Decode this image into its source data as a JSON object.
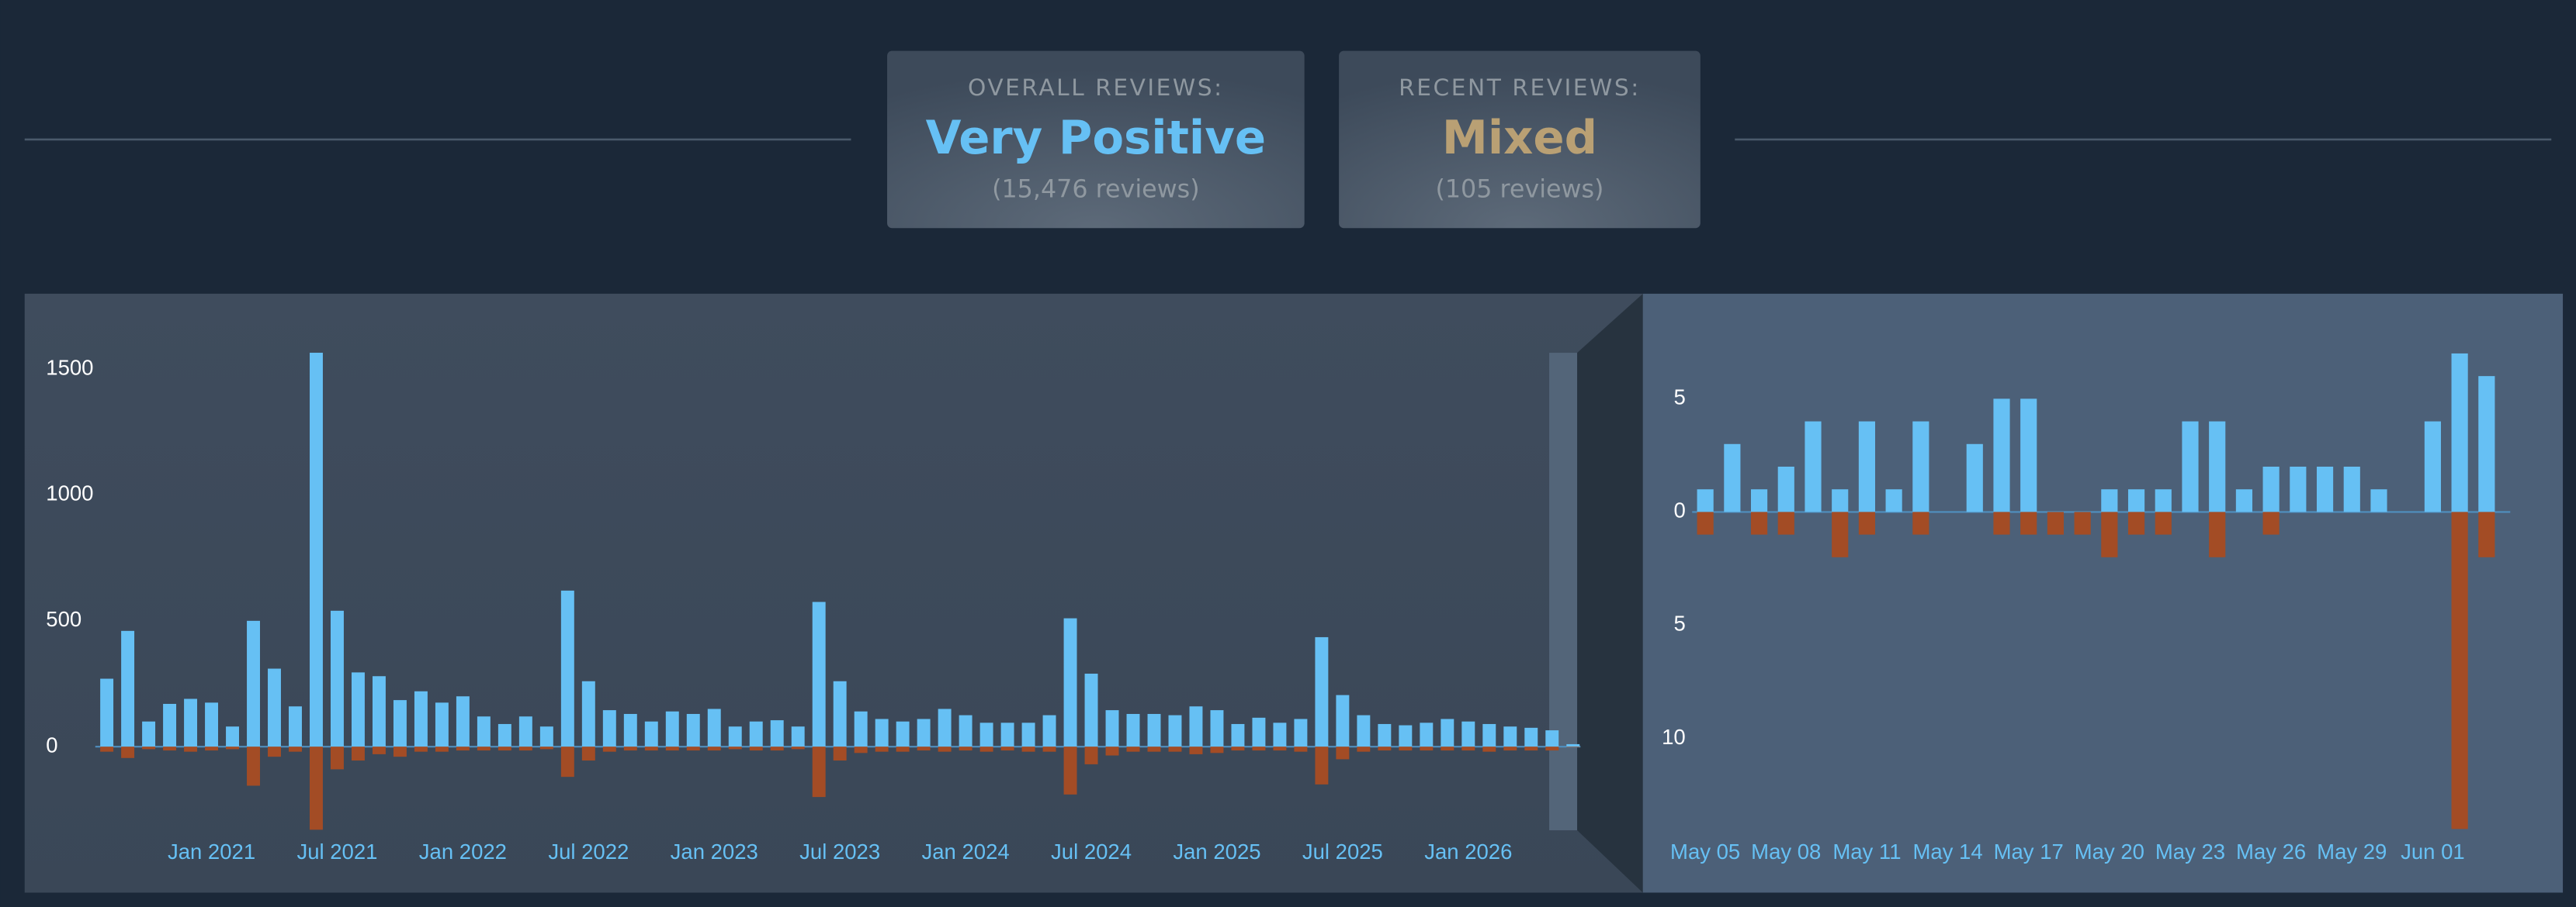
{
  "summary": {
    "overall": {
      "label": "OVERALL REVIEWS:",
      "rating": "Very Positive",
      "count": "(15,476 reviews)"
    },
    "recent": {
      "label": "RECENT REVIEWS:",
      "rating": "Mixed",
      "count": "(105 reviews)"
    }
  },
  "chart_data": [
    {
      "type": "bar",
      "categories": [
        null,
        null,
        null,
        null,
        null,
        "Jan 2021",
        null,
        null,
        null,
        null,
        null,
        "Jul 2021",
        null,
        null,
        null,
        null,
        null,
        "Jan 2022",
        null,
        null,
        null,
        null,
        null,
        "Jul 2022",
        null,
        null,
        null,
        null,
        null,
        "Jan 2023",
        null,
        null,
        null,
        null,
        null,
        "Jul 2023",
        null,
        null,
        null,
        null,
        null,
        "Jan 2024",
        null,
        null,
        null,
        null,
        null,
        "Jul 2024",
        null,
        null,
        null,
        null,
        null,
        "Jan 2025",
        null,
        null,
        null,
        null,
        null,
        "Jul 2025",
        null,
        null,
        null,
        null,
        null,
        "Jan 2026",
        null,
        null,
        null,
        null,
        null
      ],
      "series": [
        {
          "color": "#66c0f4",
          "values": [
            270,
            460,
            100,
            170,
            190,
            175,
            80,
            500,
            310,
            160,
            1565,
            540,
            295,
            280,
            185,
            220,
            175,
            200,
            120,
            90,
            120,
            80,
            620,
            260,
            145,
            130,
            100,
            140,
            130,
            150,
            80,
            100,
            105,
            80,
            575,
            260,
            140,
            110,
            100,
            110,
            150,
            125,
            95,
            95,
            95,
            125,
            510,
            290,
            145,
            130,
            130,
            125,
            160,
            145,
            90,
            115,
            95,
            110,
            435,
            205,
            125,
            90,
            85,
            95,
            110,
            100,
            90,
            80,
            75,
            65,
            10
          ]
        },
        {
          "color": "#a34c25",
          "values": [
            -20,
            -45,
            -10,
            -15,
            -20,
            -15,
            -10,
            -155,
            -40,
            -20,
            -330,
            -90,
            -55,
            -30,
            -40,
            -20,
            -20,
            -15,
            -15,
            -15,
            -15,
            -10,
            -120,
            -55,
            -20,
            -15,
            -15,
            -15,
            -15,
            -15,
            -10,
            -15,
            -15,
            -10,
            -200,
            -55,
            -25,
            -20,
            -20,
            -15,
            -20,
            -15,
            -20,
            -15,
            -20,
            -20,
            -190,
            -70,
            -35,
            -20,
            -20,
            -20,
            -30,
            -25,
            -15,
            -15,
            -15,
            -20,
            -150,
            -50,
            -20,
            -15,
            -15,
            -15,
            -15,
            -15,
            -20,
            -15,
            -15,
            -15,
            -2
          ]
        }
      ],
      "ylim": [
        -400,
        1600
      ],
      "yticks": [
        0,
        500,
        1000,
        1500
      ]
    },
    {
      "type": "bar",
      "categories": [
        "May 05",
        null,
        null,
        "May 08",
        null,
        null,
        "May 11",
        null,
        null,
        "May 14",
        null,
        null,
        "May 17",
        null,
        null,
        "May 20",
        null,
        null,
        "May 23",
        null,
        null,
        "May 26",
        null,
        null,
        "May 29",
        null,
        null,
        "Jun 01",
        null,
        null
      ],
      "series": [
        {
          "color": "#66c0f4",
          "values": [
            1,
            3,
            1,
            2,
            4,
            1,
            4,
            1,
            4,
            0,
            3,
            5,
            5,
            0,
            0,
            1,
            1,
            1,
            4,
            4,
            1,
            2,
            2,
            2,
            2,
            1,
            0,
            4,
            7,
            6
          ]
        },
        {
          "color": "#a34c25",
          "values": [
            -1,
            0,
            -1,
            -1,
            0,
            -2,
            -1,
            0,
            -1,
            0,
            0,
            -1,
            -1,
            -1,
            -1,
            -2,
            -1,
            -1,
            0,
            -2,
            0,
            -1,
            0,
            0,
            0,
            0,
            0,
            0,
            -14,
            -2
          ]
        }
      ],
      "ylim": [
        -15,
        8
      ],
      "yticks": [
        5,
        0,
        {
          "value": -5,
          "label": "5"
        },
        {
          "value": -10,
          "label": "10"
        }
      ]
    }
  ]
}
